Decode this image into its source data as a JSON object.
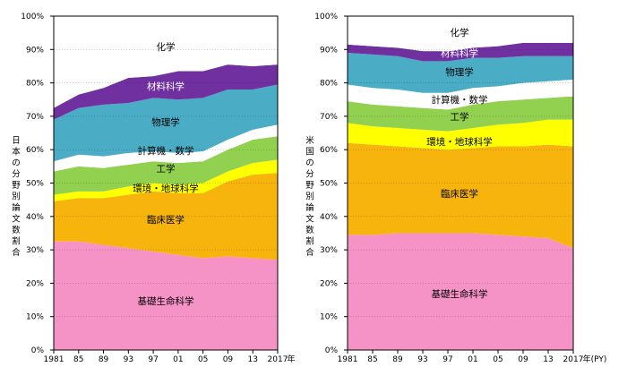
{
  "colors": {
    "基礎生命科学": "#f693c6",
    "臨床医学": "#f6b40d",
    "環境・地球科学": "#ffff00",
    "工学": "#92d050",
    "計算機・数学": "#ffffff",
    "物理学": "#4bacc6",
    "材料科学": "#7030a0",
    "化学": "#ffffff"
  },
  "axis_ticks": [
    "0%",
    "10%",
    "20%",
    "30%",
    "40%",
    "50%",
    "60%",
    "70%",
    "80%",
    "90%",
    "100%"
  ],
  "x_tick_labels": [
    "1981",
    "85",
    "89",
    "93",
    "97",
    "01",
    "05",
    "09",
    "13",
    "2017"
  ],
  "chart_data": [
    {
      "type": "area",
      "stacked": true,
      "ylabel": "日本の分野別論文数割合",
      "x_unit_label": "年",
      "ylim": [
        0,
        100
      ],
      "x": [
        1981,
        1985,
        1989,
        1993,
        1997,
        2001,
        2005,
        2009,
        2013,
        2017
      ],
      "series": [
        {
          "name": "基礎生命科学",
          "values": [
            32.5,
            32.5,
            31.5,
            30.5,
            29.5,
            28.5,
            27.5,
            28,
            27.5,
            27
          ]
        },
        {
          "name": "臨床医学",
          "values": [
            12,
            13,
            14,
            16,
            18,
            18.5,
            19.5,
            22.5,
            25,
            26
          ]
        },
        {
          "name": "環境・地球科学",
          "values": [
            2,
            2,
            2,
            2.5,
            2.5,
            2.5,
            3,
            3,
            3.5,
            4
          ]
        },
        {
          "name": "工学",
          "values": [
            7,
            7.5,
            7,
            6.5,
            6.5,
            6.5,
            6.5,
            6.5,
            7,
            7
          ]
        },
        {
          "name": "計算機・数学",
          "values": [
            3,
            3.5,
            3.5,
            3.5,
            3,
            3,
            3,
            3,
            3,
            3.5
          ]
        },
        {
          "name": "物理学",
          "values": [
            12.5,
            14,
            15.5,
            15,
            16,
            16,
            16,
            15,
            12,
            12
          ]
        },
        {
          "name": "材料科学",
          "values": [
            3.5,
            4,
            5,
            7.5,
            6.5,
            8.5,
            8,
            7.5,
            7,
            6
          ]
        },
        {
          "name": "化学",
          "values": [
            27,
            25.5,
            21.5,
            18.5,
            18,
            16.5,
            16.5,
            14.5,
            15,
            14.5
          ]
        }
      ]
    },
    {
      "type": "area",
      "stacked": true,
      "ylabel": "米国の分野別論文数割合",
      "x_unit_label": "年(PY)",
      "ylim": [
        0,
        100
      ],
      "x": [
        1981,
        1985,
        1989,
        1993,
        1997,
        2001,
        2005,
        2009,
        2013,
        2017
      ],
      "series": [
        {
          "name": "基礎生命科学",
          "values": [
            34.5,
            34.5,
            35,
            35,
            35,
            35,
            34.5,
            34,
            33.5,
            30.5
          ]
        },
        {
          "name": "臨床医学",
          "values": [
            27.5,
            27,
            26,
            25.5,
            25,
            25.5,
            26.5,
            27,
            28,
            30.5
          ]
        },
        {
          "name": "環境・地球科学",
          "values": [
            6,
            5.5,
            5.5,
            5.5,
            5.5,
            6,
            6.5,
            7,
            7.5,
            8
          ]
        },
        {
          "name": "工学",
          "values": [
            6.5,
            6.5,
            6.5,
            6.5,
            6.5,
            7,
            7,
            7,
            6.5,
            7
          ]
        },
        {
          "name": "計算機・数学",
          "values": [
            5,
            5,
            5,
            4.5,
            5,
            5,
            4.5,
            5,
            5,
            5
          ]
        },
        {
          "name": "物理学",
          "values": [
            9.5,
            10,
            10,
            9.5,
            9.5,
            9,
            8.5,
            8,
            7.5,
            7
          ]
        },
        {
          "name": "材料科学",
          "values": [
            2.5,
            2.5,
            2.5,
            3,
            3,
            3,
            3.5,
            4,
            4,
            4
          ]
        },
        {
          "name": "化学",
          "values": [
            8.5,
            9,
            9.5,
            10.5,
            10.5,
            9.5,
            9,
            8,
            8,
            8
          ]
        }
      ]
    }
  ]
}
